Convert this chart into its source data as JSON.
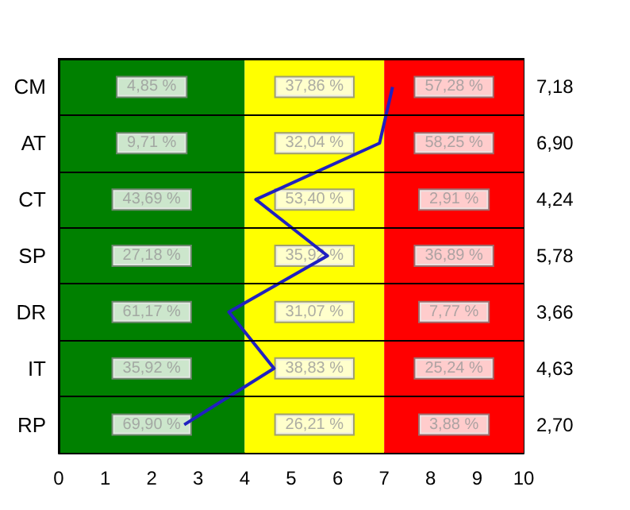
{
  "chart_data": {
    "type": "line",
    "orientation": "horizontal",
    "categories": [
      "CM",
      "AT",
      "CT",
      "SP",
      "DR",
      "IT",
      "RP"
    ],
    "series": [
      {
        "color": "#2020c0",
        "values": [
          7.18,
          6.9,
          4.24,
          5.78,
          3.66,
          4.63,
          2.7
        ],
        "value_labels": [
          "7,18",
          "6,90",
          "4,24",
          "5,78",
          "3,66",
          "4,63",
          "2,70"
        ]
      }
    ],
    "xlim": [
      0,
      10
    ],
    "xticks": [
      0,
      1,
      2,
      3,
      4,
      5,
      6,
      7,
      8,
      9,
      10
    ],
    "marker": "none",
    "grid": "y",
    "bands": [
      {
        "axis": "x",
        "from": 0,
        "to": 4,
        "color": "#008000"
      },
      {
        "axis": "x",
        "from": 4,
        "to": 7,
        "color": "#ffff00"
      },
      {
        "axis": "x",
        "from": 7,
        "to": 10,
        "color": "#ff0000"
      }
    ],
    "annotations": [
      "4,85 %",
      "37,86 %",
      "57,28 %",
      "9,71 %",
      "32,04 %",
      "58,25 %",
      "43,69 %",
      "53,40 %",
      "2,91 %",
      "27,18 %",
      "35,92 %",
      "36,89 %",
      "61,17 %",
      "31,07 %",
      "7,77 %",
      "35,92 %",
      "38,83 %",
      "25,24 %",
      "69,90 %",
      "26,21 %",
      "3,88 %"
    ]
  }
}
